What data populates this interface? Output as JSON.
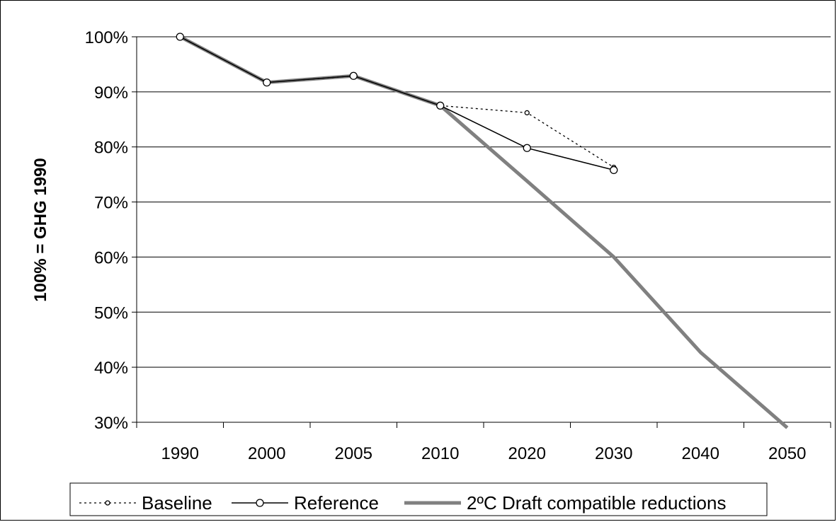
{
  "chart_data": {
    "type": "line",
    "title": "",
    "xlabel": "",
    "ylabel": "100% = GHG 1990",
    "categories": [
      "1990",
      "2000",
      "2005",
      "2010",
      "2020",
      "2030",
      "2040",
      "2050"
    ],
    "ylim": [
      30,
      100
    ],
    "ytick_values": [
      30,
      40,
      50,
      60,
      70,
      80,
      90,
      100
    ],
    "ytick_labels": [
      "30%",
      "40%",
      "50%",
      "60%",
      "70%",
      "80%",
      "90%",
      "100%"
    ],
    "grid": true,
    "legend_position": "bottom",
    "series": [
      {
        "name": "Baseline",
        "style": "dotted-line-small-circle-markers",
        "color": "#000000",
        "values": [
          100,
          91.7,
          92.9,
          87.5,
          86.2,
          76.3,
          null,
          null
        ]
      },
      {
        "name": "Reference",
        "style": "solid-thin-line-circle-markers",
        "color": "#000000",
        "values": [
          100,
          91.7,
          92.9,
          87.5,
          79.8,
          75.8,
          null,
          null
        ]
      },
      {
        "name": "2ºC Draft compatible reductions",
        "style": "thick-gray-line",
        "color": "#808080",
        "values": [
          100,
          91.7,
          92.9,
          87.5,
          73.8,
          60,
          42.7,
          29
        ]
      }
    ]
  }
}
